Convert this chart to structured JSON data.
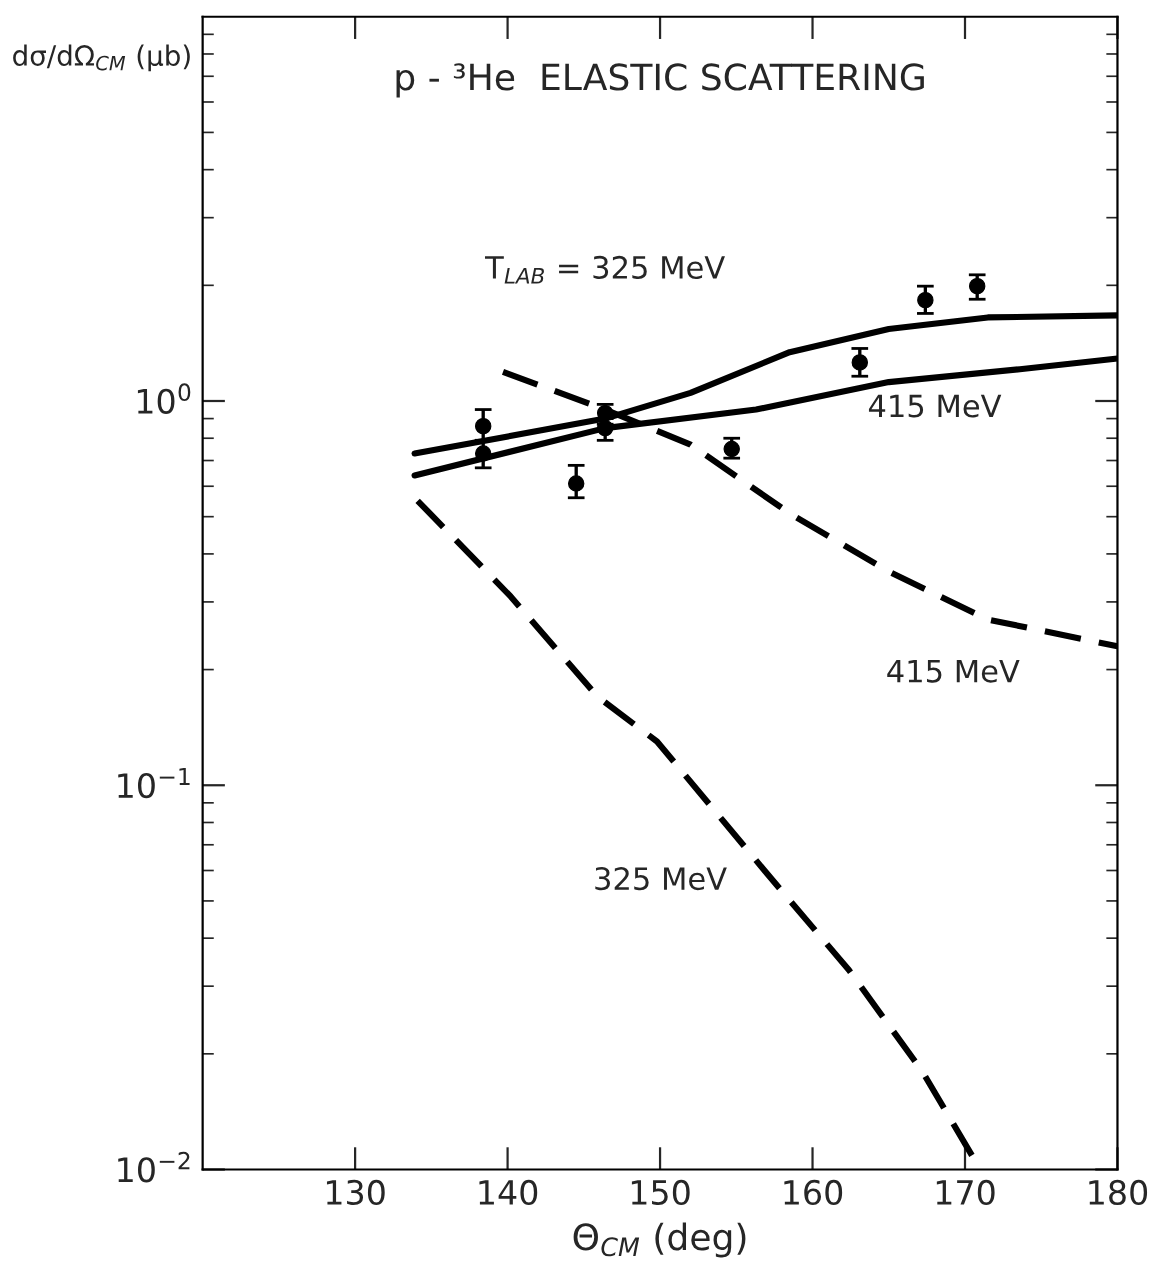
{
  "chart_data": {
    "type": "line",
    "title": "p - ³He  ELASTIC SCATTERING",
    "xlabel": "Θ$_{CM}$ (deg)",
    "ylabel": "dσ/dΩ$_{CM}$ (μb)",
    "log": "y",
    "grid": false,
    "legend": false,
    "xlim": [
      120,
      180
    ],
    "xticks": [
      130,
      140,
      150,
      160,
      170,
      180
    ],
    "ylim": [
      0.01,
      10
    ],
    "yticks": [
      {
        "value": 0.01,
        "label": "10$^{−2}$"
      },
      {
        "value": 0.1,
        "label": "10$^{−1}$"
      },
      {
        "value": 1,
        "label": "10$^{0}$"
      }
    ],
    "series": [
      {
        "color": "#000000",
        "line_style": "solid",
        "marker": "none",
        "x": [
          133.9,
          146.4,
          152,
          158.5,
          165,
          171.5,
          180
        ],
        "values": [
          0.73,
          0.9,
          1.05,
          1.34,
          1.54,
          1.65,
          1.67
        ]
      },
      {
        "color": "#000000",
        "line_style": "solid",
        "marker": "none",
        "x": [
          133.9,
          146.4,
          156.3,
          165,
          173.6,
          180
        ],
        "values": [
          0.64,
          0.85,
          0.95,
          1.12,
          1.21,
          1.29
        ]
      },
      {
        "color": "#000000",
        "line_style": "dashed",
        "marker": "none",
        "x": [
          139.7,
          146.4,
          152,
          158.5,
          165,
          171.5,
          180
        ],
        "values": [
          1.19,
          0.95,
          0.77,
          0.51,
          0.36,
          0.27,
          0.23
        ]
      },
      {
        "color": "#000000",
        "line_style": "dashed",
        "marker": "none",
        "x": [
          134.1,
          140.2,
          145.9,
          149.8,
          157,
          162.4,
          167.2,
          171
        ],
        "values": [
          0.55,
          0.31,
          0.17,
          0.13,
          0.059,
          0.033,
          0.018,
          0.01
        ]
      },
      {
        "type": "scatter",
        "color": "#000000",
        "marker": "circle",
        "x": [
          138.4,
          138.4,
          144.5,
          146.4,
          146.4,
          154.7,
          163.1,
          167.4,
          170.8
        ],
        "values": [
          0.86,
          0.73,
          0.61,
          0.93,
          0.85,
          0.75,
          1.26,
          1.83,
          1.99
        ],
        "errors": [
          [
            0.79,
            0.95
          ],
          [
            0.67,
            0.79
          ],
          [
            0.56,
            0.68
          ],
          [
            0.87,
            0.98
          ],
          [
            0.79,
            0.9
          ],
          [
            0.71,
            0.8
          ],
          [
            1.16,
            1.37
          ],
          [
            1.69,
            1.99
          ],
          [
            1.84,
            2.13
          ]
        ]
      }
    ],
    "annotations": [
      "T$_{LAB}$ = 325 MeV",
      "415 MeV",
      "415 MeV",
      "325 MeV"
    ]
  }
}
